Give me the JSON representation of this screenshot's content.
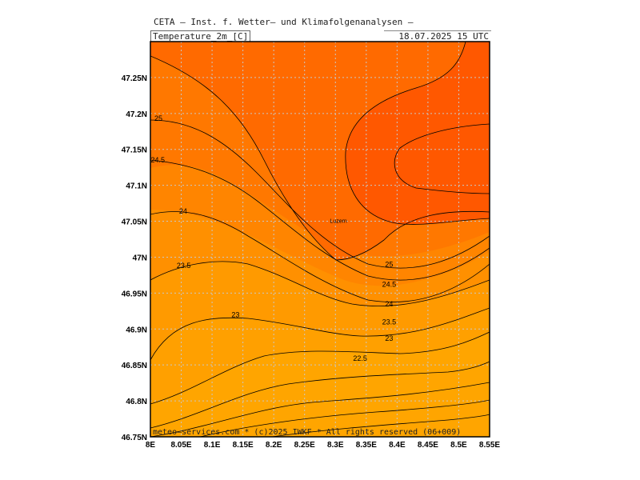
{
  "header": {
    "provider": "CETA – Inst. f. Wetter– und Klimafolgenanalysen –",
    "variable": "Temperature_2m_[C]",
    "valid_time": "18.07.2025  15 UTC"
  },
  "footer": "meteo–services.com * (c)2025 IWKF * All rights reserved (06+009)",
  "colors": {
    "band_22": "#ffa500",
    "band_22_5": "#ffa000",
    "band_23": "#ff9a00",
    "band_23_5": "#ff9000",
    "band_24": "#ff8500",
    "band_24_5": "#ff7800",
    "band_25": "#ff6a00",
    "band_25_5": "#ff5800",
    "contour": "#000000",
    "grid": "#c8c8c8"
  },
  "chart_data": {
    "type": "heatmap",
    "map_type": "filled contour map",
    "xlabel": "",
    "ylabel": "",
    "xlim": [
      8.0,
      8.55
    ],
    "ylim": [
      46.75,
      47.3
    ],
    "x_ticks": [
      8.0,
      8.05,
      8.1,
      8.15,
      8.2,
      8.25,
      8.3,
      8.35,
      8.4,
      8.45,
      8.5,
      8.55
    ],
    "x_tick_labels": [
      "8E",
      "8.05E",
      "8.1E",
      "8.15E",
      "8.2E",
      "8.25E",
      "8.3E",
      "8.35E",
      "8.4E",
      "8.45E",
      "8.5E",
      "8.55E"
    ],
    "y_ticks": [
      46.75,
      46.8,
      46.85,
      46.9,
      46.95,
      47.0,
      47.05,
      47.1,
      47.15,
      47.2,
      47.25
    ],
    "y_tick_labels": [
      "46.75N",
      "46.8N",
      "46.85N",
      "46.9N",
      "46.95N",
      "47N",
      "47.05N",
      "47.1N",
      "47.15N",
      "47.2N",
      "47.25N"
    ],
    "grid": true,
    "contour_labels": [
      {
        "text": "25",
        "lon": 8.013,
        "lat": 47.193
      },
      {
        "text": "24.5",
        "lon": 8.012,
        "lat": 47.135
      },
      {
        "text": "24",
        "lon": 8.053,
        "lat": 47.064
      },
      {
        "text": "23.5",
        "lon": 8.054,
        "lat": 46.988
      },
      {
        "text": "23",
        "lon": 8.138,
        "lat": 46.92
      },
      {
        "text": "25",
        "lon": 8.387,
        "lat": 46.99
      },
      {
        "text": "24.5",
        "lon": 8.387,
        "lat": 46.962
      },
      {
        "text": "24",
        "lon": 8.387,
        "lat": 46.935
      },
      {
        "text": "23.5",
        "lon": 8.387,
        "lat": 46.91
      },
      {
        "text": "23",
        "lon": 8.387,
        "lat": 46.887
      },
      {
        "text": "22.5",
        "lon": 8.34,
        "lat": 46.859
      }
    ],
    "places": [
      {
        "name": "Luzern",
        "lon": 8.305,
        "lat": 47.05
      }
    ]
  }
}
